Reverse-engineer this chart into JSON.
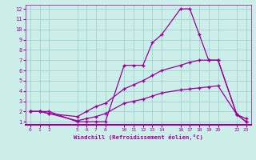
{
  "xlabel": "Windchill (Refroidissement éolien,°C)",
  "bg_color": "#cceee8",
  "line_color": "#990099",
  "grid_color": "#99cccc",
  "x_ticks": [
    0,
    1,
    2,
    5,
    6,
    7,
    8,
    10,
    11,
    12,
    13,
    14,
    16,
    17,
    18,
    19,
    20,
    22,
    23
  ],
  "x_tick_labels": [
    "0",
    "1",
    "2",
    "5",
    "6",
    "7",
    "8",
    "10",
    "11",
    "12",
    "13",
    "14",
    "16",
    "17",
    "18",
    "19",
    "20",
    "22",
    "23"
  ],
  "ylim": [
    0.7,
    12.4
  ],
  "xlim": [
    -0.5,
    23.5
  ],
  "yticks": [
    1,
    2,
    3,
    4,
    5,
    6,
    7,
    8,
    9,
    10,
    11,
    12
  ],
  "line1_x": [
    0,
    1,
    2,
    5,
    6,
    7,
    8,
    10,
    11,
    12,
    13,
    14,
    16,
    17,
    18,
    19,
    20,
    22,
    23
  ],
  "line1_y": [
    2,
    2,
    2,
    1,
    1,
    1,
    1,
    6.5,
    6.5,
    6.5,
    8.7,
    9.5,
    12,
    12,
    9.5,
    7.0,
    7.0,
    1.7,
    1.0
  ],
  "line2_x": [
    0,
    1,
    2,
    5,
    6,
    7,
    8,
    10,
    11,
    12,
    13,
    14,
    16,
    17,
    18,
    19,
    20,
    22,
    23
  ],
  "line2_y": [
    2,
    2,
    1.8,
    1.5,
    2.0,
    2.5,
    2.8,
    4.2,
    4.6,
    5.0,
    5.5,
    6.0,
    6.5,
    6.8,
    7.0,
    7.0,
    7.0,
    1.7,
    1.3
  ],
  "line3_x": [
    0,
    1,
    2,
    5,
    6,
    7,
    8,
    10,
    11,
    12,
    13,
    14,
    16,
    17,
    18,
    19,
    20,
    22,
    23
  ],
  "line3_y": [
    2,
    2,
    1.8,
    1.1,
    1.3,
    1.5,
    1.8,
    2.8,
    3.0,
    3.2,
    3.5,
    3.8,
    4.1,
    4.2,
    4.3,
    4.4,
    4.5,
    1.7,
    1.0
  ]
}
